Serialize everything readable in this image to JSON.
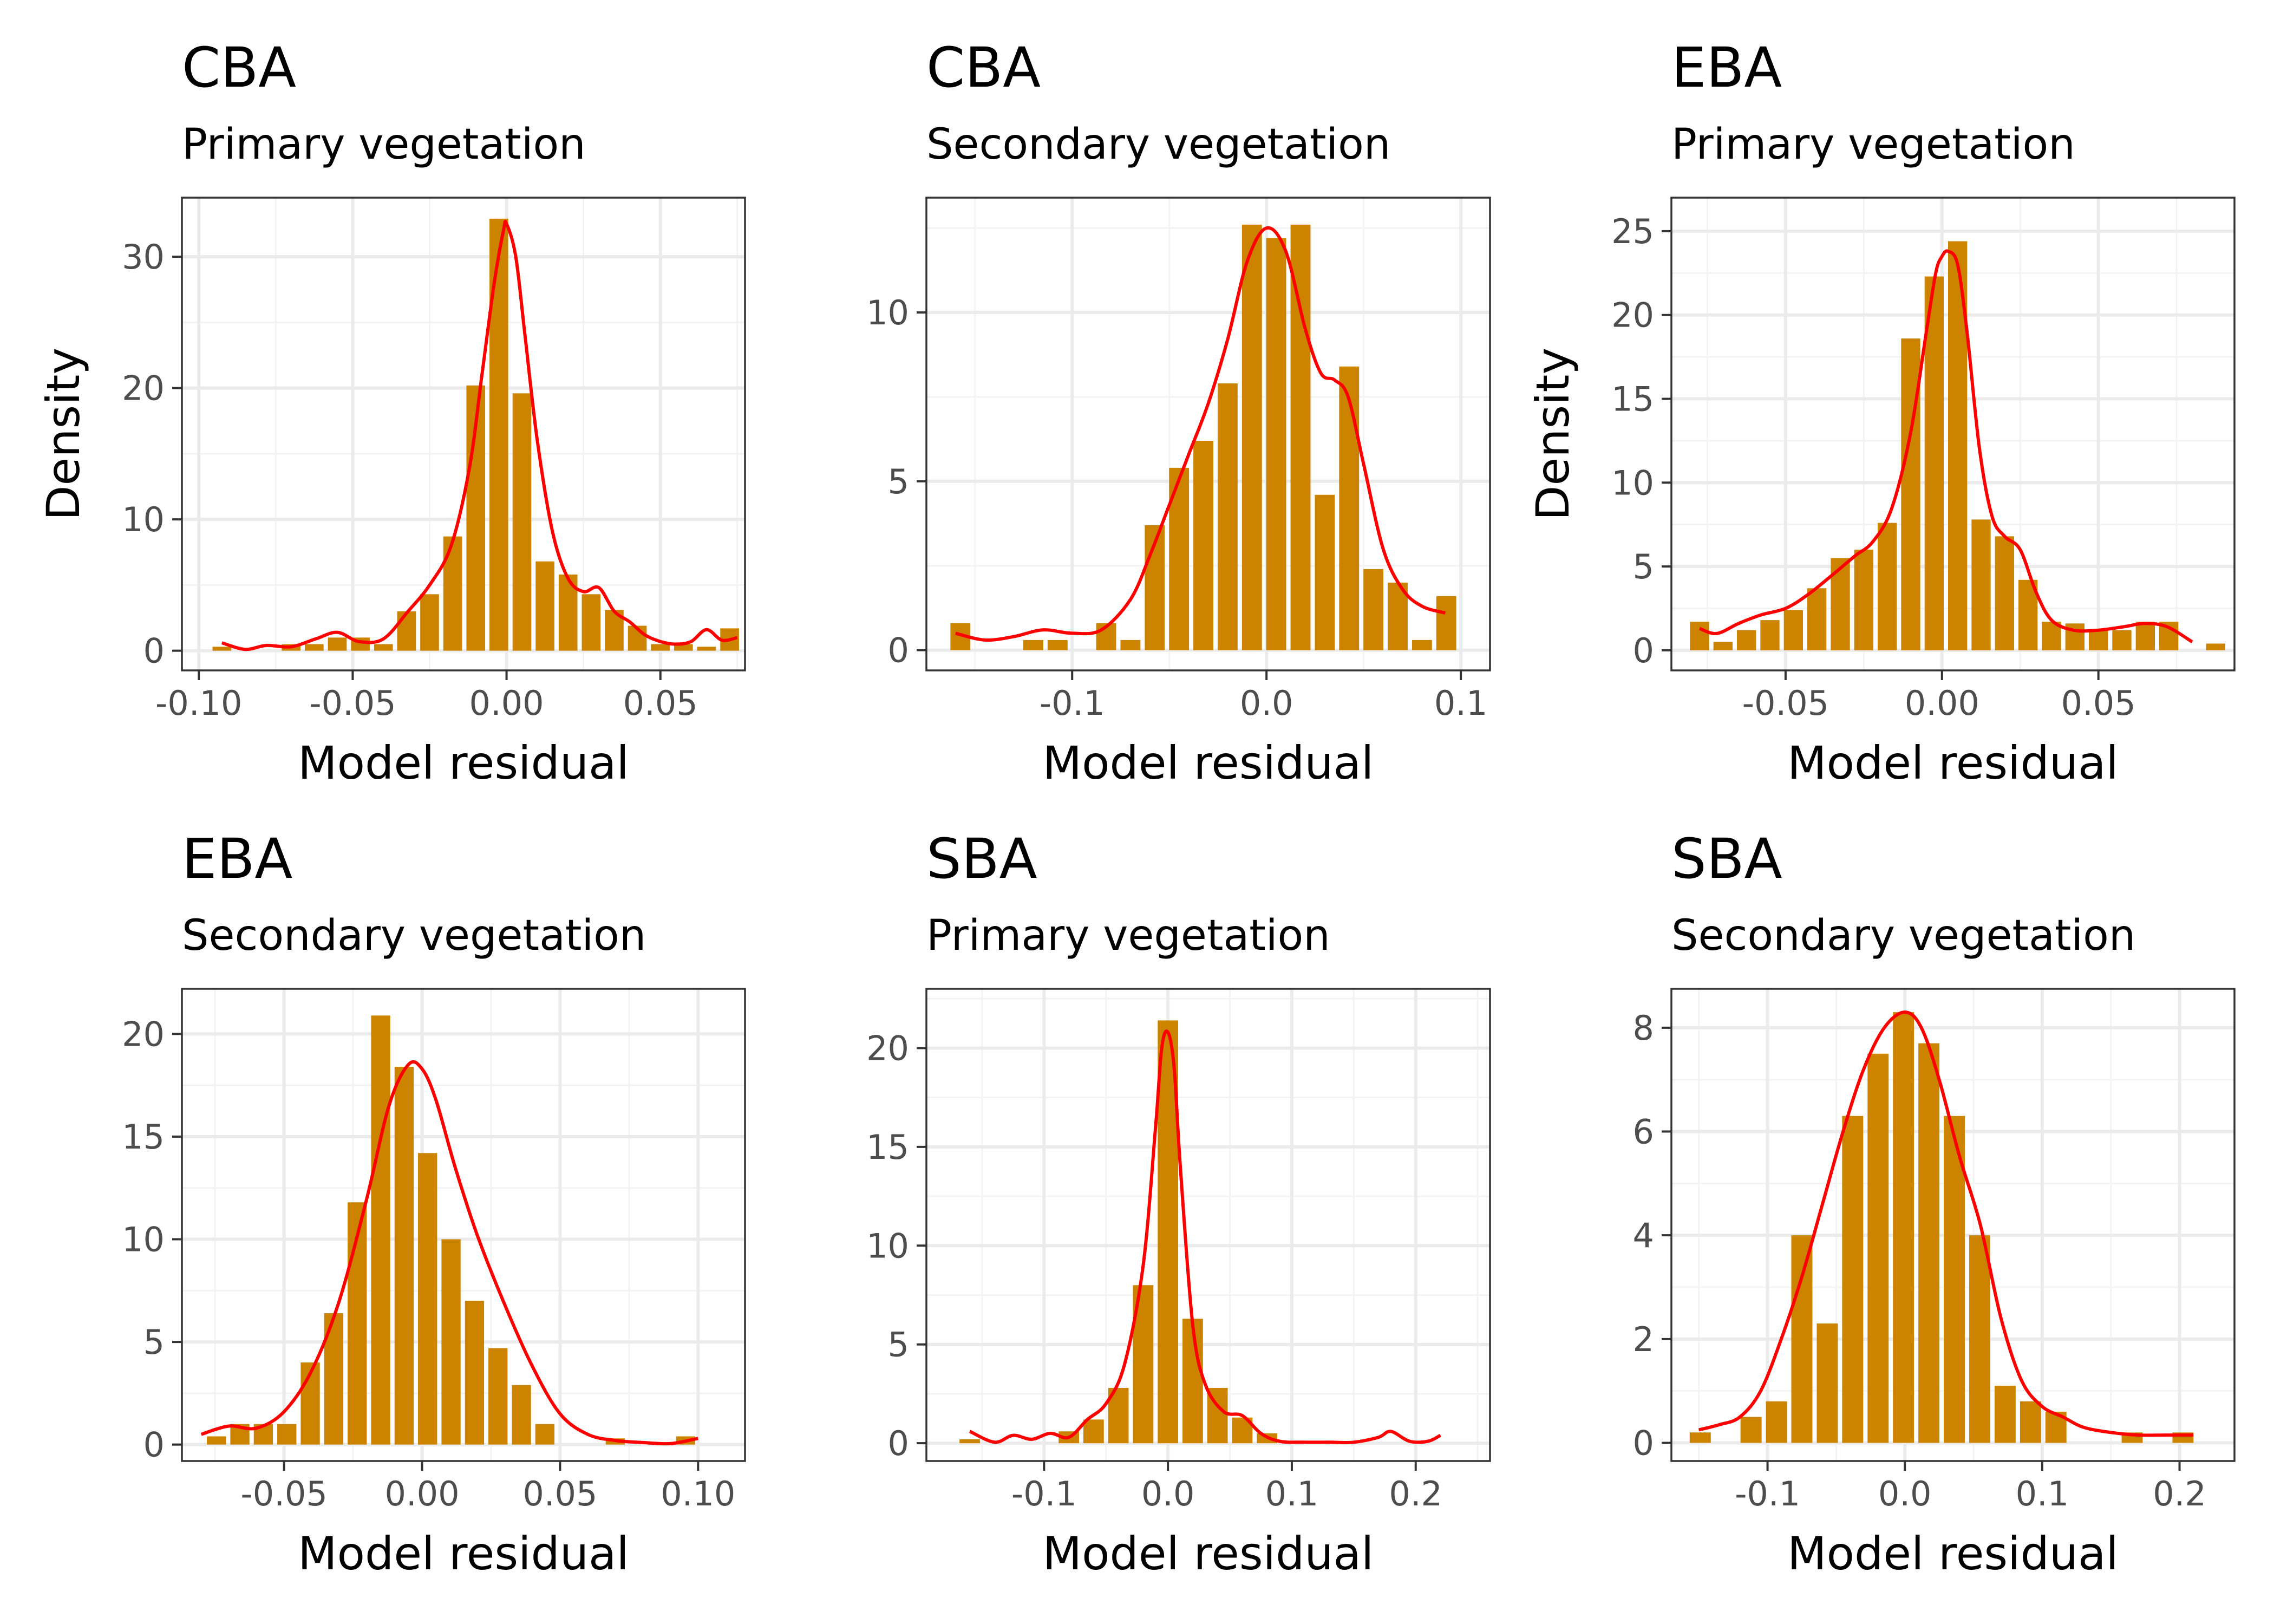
{
  "colors": {
    "bar": "#CC8400",
    "density": "#FF0000",
    "grid": "#EBEBEB",
    "frame": "#333333"
  },
  "chart_data": [
    {
      "type": "bar",
      "title": "CBA",
      "subtitle": "Primary vegetation",
      "xlabel": "Model residual",
      "ylabel": "Density",
      "xlim": [
        -0.1055,
        0.0775
      ],
      "ylim": [
        -1.5,
        34.5
      ],
      "xticks": [
        -0.1,
        -0.05,
        0.0,
        0.05
      ],
      "xtick_labels": [
        "-0.10",
        "-0.05",
        "0.00",
        "0.05"
      ],
      "yticks": [
        0,
        10,
        20,
        30
      ],
      "ytick_labels": [
        "0",
        "10",
        "20",
        "30"
      ],
      "grid": true,
      "histogram": {
        "bin_width": 0.0075,
        "centers": [
          -0.0925,
          -0.085,
          -0.0775,
          -0.07,
          -0.0625,
          -0.055,
          -0.0475,
          -0.04,
          -0.0325,
          -0.025,
          -0.0175,
          -0.01,
          -0.0025,
          0.005,
          0.0125,
          0.02,
          0.0275,
          0.035,
          0.0425,
          0.05,
          0.0575,
          0.065,
          0.0725
        ],
        "values": [
          0.3,
          0,
          0,
          0.5,
          0.5,
          1.0,
          1.0,
          0.5,
          3.0,
          4.3,
          8.7,
          20.2,
          32.9,
          19.6,
          6.8,
          5.8,
          4.3,
          3.1,
          1.9,
          0.5,
          0.5,
          0.3,
          1.7
        ]
      },
      "density": {
        "x": [
          -0.0925,
          -0.085,
          -0.078,
          -0.07,
          -0.062,
          -0.055,
          -0.048,
          -0.04,
          -0.032,
          -0.025,
          -0.018,
          -0.012,
          -0.008,
          -0.004,
          -0.001,
          0.0,
          0.003,
          0.006,
          0.01,
          0.015,
          0.02,
          0.025,
          0.03,
          0.035,
          0.04,
          0.045,
          0.05,
          0.055,
          0.06,
          0.065,
          0.07,
          0.075
        ],
        "y": [
          0.6,
          0.1,
          0.4,
          0.3,
          0.9,
          1.4,
          0.7,
          0.9,
          3.0,
          5.0,
          8.0,
          14.0,
          21.0,
          28.0,
          32.0,
          32.5,
          30.0,
          24.0,
          16.0,
          9.0,
          5.5,
          4.5,
          4.8,
          3.0,
          2.2,
          1.2,
          0.7,
          0.5,
          0.7,
          1.6,
          0.8,
          1.0
        ]
      }
    },
    {
      "type": "bar",
      "title": "CBA",
      "subtitle": "Secondary vegetation",
      "xlabel": "Model residual",
      "ylabel": "",
      "xlim": [
        -0.175,
        0.115
      ],
      "ylim": [
        -0.6,
        13.4
      ],
      "xticks": [
        -0.1,
        0.0,
        0.1
      ],
      "xtick_labels": [
        "-0.1",
        "0.0",
        "0.1"
      ],
      "yticks": [
        0,
        5,
        10
      ],
      "ytick_labels": [
        "0",
        "5",
        "10"
      ],
      "grid": true,
      "histogram": {
        "bin_width": 0.0125,
        "centers": [
          -0.1575,
          -0.145,
          -0.1325,
          -0.12,
          -0.1075,
          -0.095,
          -0.0825,
          -0.07,
          -0.0575,
          -0.045,
          -0.0325,
          -0.02,
          -0.0075,
          0.005,
          0.0175,
          0.03,
          0.0425,
          0.055,
          0.0675,
          0.08,
          0.0925
        ],
        "values": [
          0.8,
          0,
          0,
          0.3,
          0.3,
          0,
          0.8,
          0.3,
          3.7,
          5.4,
          6.2,
          7.9,
          12.6,
          12.2,
          12.6,
          4.6,
          8.4,
          2.4,
          2.0,
          0.3,
          1.6
        ]
      },
      "density": {
        "x": [
          -0.16,
          -0.145,
          -0.13,
          -0.115,
          -0.1,
          -0.085,
          -0.07,
          -0.06,
          -0.05,
          -0.04,
          -0.03,
          -0.02,
          -0.01,
          0.0,
          0.01,
          0.02,
          0.028,
          0.035,
          0.042,
          0.05,
          0.06,
          0.07,
          0.08,
          0.092
        ],
        "y": [
          0.5,
          0.3,
          0.4,
          0.6,
          0.5,
          0.6,
          1.5,
          2.8,
          4.3,
          5.8,
          7.3,
          9.2,
          11.5,
          12.5,
          11.8,
          9.5,
          8.2,
          8.0,
          7.5,
          5.5,
          3.0,
          1.8,
          1.3,
          1.1
        ]
      }
    },
    {
      "type": "bar",
      "title": "EBA",
      "subtitle": "Primary vegetation",
      "xlabel": "Model residual",
      "ylabel": "Density",
      "xlim": [
        -0.0865,
        0.0935
      ],
      "ylim": [
        -1.2,
        27.0
      ],
      "xticks": [
        -0.05,
        0.0,
        0.05
      ],
      "xtick_labels": [
        "-0.05",
        "0.00",
        "0.05"
      ],
      "yticks": [
        0,
        5,
        10,
        15,
        20,
        25
      ],
      "ytick_labels": [
        "0",
        "5",
        "10",
        "15",
        "20",
        "25"
      ],
      "grid": true,
      "histogram": {
        "bin_width": 0.0075,
        "centers": [
          -0.0775,
          -0.07,
          -0.0625,
          -0.055,
          -0.0475,
          -0.04,
          -0.0325,
          -0.025,
          -0.0175,
          -0.01,
          -0.0025,
          0.005,
          0.0125,
          0.02,
          0.0275,
          0.035,
          0.0425,
          0.05,
          0.0575,
          0.065,
          0.0725,
          0.08,
          0.0875
        ],
        "values": [
          1.7,
          0.5,
          1.2,
          1.8,
          2.4,
          3.7,
          5.5,
          6.0,
          7.6,
          18.6,
          22.3,
          24.4,
          7.8,
          6.8,
          4.2,
          1.7,
          1.6,
          1.2,
          1.2,
          1.7,
          1.7,
          0,
          0.4
        ]
      },
      "density": {
        "x": [
          -0.0775,
          -0.072,
          -0.065,
          -0.058,
          -0.05,
          -0.043,
          -0.035,
          -0.028,
          -0.022,
          -0.016,
          -0.01,
          -0.005,
          -0.002,
          0.0,
          0.002,
          0.005,
          0.008,
          0.012,
          0.016,
          0.02,
          0.025,
          0.03,
          0.035,
          0.042,
          0.05,
          0.058,
          0.065,
          0.072,
          0.08
        ],
        "y": [
          1.3,
          1.0,
          1.6,
          2.1,
          2.5,
          3.3,
          4.5,
          5.6,
          6.5,
          8.5,
          13.0,
          19.0,
          22.5,
          23.5,
          23.8,
          23.0,
          19.0,
          12.0,
          8.0,
          6.8,
          6.0,
          3.5,
          1.8,
          1.2,
          1.2,
          1.4,
          1.6,
          1.4,
          0.5
        ]
      }
    },
    {
      "type": "bar",
      "title": "EBA",
      "subtitle": "Secondary vegetation",
      "xlabel": "Model residual",
      "ylabel": "",
      "xlim": [
        -0.087,
        0.117
      ],
      "ylim": [
        -0.8,
        22.2
      ],
      "xticks": [
        -0.05,
        0.0,
        0.05,
        0.1
      ],
      "xtick_labels": [
        "-0.05",
        "0.00",
        "0.05",
        "0.10"
      ],
      "yticks": [
        0,
        5,
        10,
        15,
        20
      ],
      "ytick_labels": [
        "0",
        "5",
        "10",
        "15",
        "20"
      ],
      "grid": true,
      "histogram": {
        "bin_width": 0.0085,
        "centers": [
          -0.0745,
          -0.066,
          -0.0575,
          -0.049,
          -0.0405,
          -0.032,
          -0.0235,
          -0.015,
          -0.0065,
          0.002,
          0.0105,
          0.019,
          0.0275,
          0.036,
          0.0445,
          0.053,
          0.0615,
          0.07,
          0.0785,
          0.087,
          0.0955,
          0.104
        ],
        "values": [
          0.4,
          1.0,
          1.0,
          1.0,
          4.0,
          6.4,
          11.8,
          20.9,
          18.4,
          14.2,
          10.0,
          7.0,
          4.7,
          2.9,
          1.0,
          0,
          0,
          0.3,
          0,
          0,
          0.4,
          0
        ]
      },
      "density": {
        "x": [
          -0.08,
          -0.07,
          -0.06,
          -0.05,
          -0.04,
          -0.03,
          -0.02,
          -0.012,
          -0.005,
          0.0,
          0.005,
          0.012,
          0.02,
          0.03,
          0.04,
          0.05,
          0.06,
          0.07,
          0.08,
          0.09,
          0.1
        ],
        "y": [
          0.5,
          0.9,
          0.8,
          1.6,
          3.6,
          7.0,
          12.0,
          16.5,
          18.5,
          18.3,
          16.8,
          13.5,
          10.2,
          6.8,
          3.8,
          1.5,
          0.5,
          0.2,
          0.1,
          0.05,
          0.3
        ]
      }
    },
    {
      "type": "bar",
      "title": "SBA",
      "subtitle": "Primary vegetation",
      "xlabel": "Model residual",
      "ylabel": "",
      "xlim": [
        -0.195,
        0.26
      ],
      "ylim": [
        -0.9,
        23.0
      ],
      "xticks": [
        -0.1,
        0.0,
        0.1,
        0.2
      ],
      "xtick_labels": [
        "-0.1",
        "0.0",
        "0.1",
        "0.2"
      ],
      "yticks": [
        0,
        5,
        10,
        15,
        20
      ],
      "ytick_labels": [
        "0",
        "5",
        "10",
        "15",
        "20"
      ],
      "grid": true,
      "histogram": {
        "bin_width": 0.02,
        "centers": [
          -0.16,
          -0.14,
          -0.12,
          -0.1,
          -0.08,
          -0.06,
          -0.04,
          -0.02,
          0.0,
          0.02,
          0.04,
          0.06,
          0.08,
          0.1,
          0.12,
          0.14,
          0.16,
          0.18,
          0.2,
          0.22
        ],
        "values": [
          0.2,
          0,
          0,
          0,
          0.6,
          1.2,
          2.8,
          8.0,
          21.4,
          6.3,
          2.8,
          1.3,
          0.5,
          0,
          0,
          0,
          0,
          0,
          0,
          0
        ]
      },
      "density": {
        "x": [
          -0.16,
          -0.14,
          -0.125,
          -0.11,
          -0.095,
          -0.08,
          -0.065,
          -0.05,
          -0.035,
          -0.02,
          -0.01,
          -0.005,
          0.0,
          0.005,
          0.01,
          0.02,
          0.03,
          0.045,
          0.06,
          0.075,
          0.09,
          0.11,
          0.13,
          0.15,
          0.17,
          0.18,
          0.195,
          0.21,
          0.22
        ],
        "y": [
          0.6,
          0.05,
          0.4,
          0.2,
          0.5,
          0.3,
          1.2,
          2.0,
          4.0,
          9.0,
          16.0,
          20.0,
          20.8,
          19.0,
          14.0,
          6.0,
          3.0,
          1.6,
          1.4,
          0.5,
          0.1,
          0.05,
          0.05,
          0.05,
          0.3,
          0.6,
          0.1,
          0.1,
          0.4
        ]
      }
    },
    {
      "type": "bar",
      "title": "SBA",
      "subtitle": "Secondary vegetation",
      "xlabel": "Model residual",
      "ylabel": "",
      "xlim": [
        -0.17,
        0.24
      ],
      "ylim": [
        -0.35,
        8.75
      ],
      "xticks": [
        -0.1,
        0.0,
        0.1,
        0.2
      ],
      "xtick_labels": [
        "-0.1",
        "0.0",
        "0.1",
        "0.2"
      ],
      "yticks": [
        0,
        2,
        4,
        6,
        8
      ],
      "ytick_labels": [
        "0",
        "2",
        "4",
        "6",
        "8"
      ],
      "grid": true,
      "histogram": {
        "bin_width": 0.0185,
        "centers": [
          -0.149,
          -0.1305,
          -0.112,
          -0.0935,
          -0.075,
          -0.0565,
          -0.038,
          -0.0195,
          -0.001,
          0.0175,
          0.036,
          0.0545,
          0.073,
          0.0915,
          0.11,
          0.1285,
          0.147,
          0.1655,
          0.184,
          0.2025
        ],
        "values": [
          0.2,
          0,
          0.5,
          0.8,
          4.0,
          2.3,
          6.3,
          7.5,
          8.3,
          7.7,
          6.3,
          4.0,
          1.1,
          0.8,
          0.6,
          0,
          0,
          0.2,
          0,
          0.2
        ]
      },
      "density": {
        "x": [
          -0.15,
          -0.135,
          -0.12,
          -0.105,
          -0.09,
          -0.075,
          -0.06,
          -0.045,
          -0.03,
          -0.015,
          0.0,
          0.012,
          0.025,
          0.04,
          0.055,
          0.07,
          0.085,
          0.1,
          0.115,
          0.13,
          0.15,
          0.17,
          0.19,
          0.21
        ],
        "y": [
          0.25,
          0.35,
          0.5,
          1.0,
          2.0,
          3.2,
          4.6,
          6.0,
          7.2,
          8.0,
          8.3,
          8.0,
          7.0,
          5.5,
          4.2,
          2.4,
          1.2,
          0.7,
          0.5,
          0.3,
          0.2,
          0.15,
          0.15,
          0.15
        ]
      }
    }
  ]
}
